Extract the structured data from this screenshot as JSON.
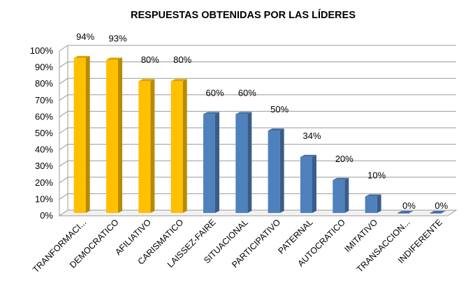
{
  "chart_data": {
    "type": "bar",
    "title": "RESPUESTAS OBTENIDAS POR LAS LÍDERES",
    "xlabel": "",
    "ylabel": "",
    "ylim": [
      0,
      100
    ],
    "y_ticks": [
      "0%",
      "10%",
      "20%",
      "30%",
      "40%",
      "50%",
      "60%",
      "70%",
      "80%",
      "90%",
      "100%"
    ],
    "grid": true,
    "legend": "none",
    "categories": [
      "TRANFORMACI...",
      "DEMOCRATICO",
      "AFILIATIVO",
      "CARISMATICO",
      "LAISSEZ-FAIRE",
      "SITUACIONAL",
      "PARTICIPATIVO",
      "PATERNAL",
      "AUTOCRATICO",
      "IMITATIVO",
      "TRANSACCION...",
      "INDIFERENTE"
    ],
    "values": [
      94,
      93,
      80,
      80,
      60,
      60,
      50,
      34,
      20,
      10,
      0,
      0
    ],
    "data_labels": [
      "94%",
      "93%",
      "80%",
      "80%",
      "60%",
      "60%",
      "50%",
      "34%",
      "20%",
      "10%",
      "0%",
      "0%"
    ],
    "bar_colors": [
      "#FFC000",
      "#FFC000",
      "#FFC000",
      "#FFC000",
      "#4F81BD",
      "#4F81BD",
      "#4F81BD",
      "#4F81BD",
      "#4F81BD",
      "#4F81BD",
      "#4F81BD",
      "#4F81BD"
    ]
  }
}
